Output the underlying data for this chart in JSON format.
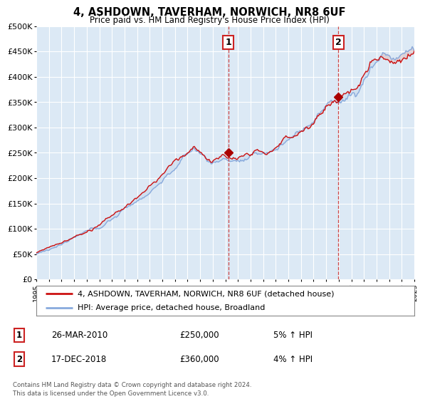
{
  "title": "4, ASHDOWN, TAVERHAM, NORWICH, NR8 6UF",
  "subtitle": "Price paid vs. HM Land Registry's House Price Index (HPI)",
  "ylim": [
    0,
    500000
  ],
  "yticks": [
    0,
    50000,
    100000,
    150000,
    200000,
    250000,
    300000,
    350000,
    400000,
    450000,
    500000
  ],
  "ytick_labels": [
    "£0",
    "£50K",
    "£100K",
    "£150K",
    "£200K",
    "£250K",
    "£300K",
    "£350K",
    "£400K",
    "£450K",
    "£500K"
  ],
  "background_color": "#ffffff",
  "plot_bg_color": "#dce9f5",
  "grid_color": "#cccccc",
  "sale1_x": 2010.23,
  "sale1_y": 250000,
  "sale2_x": 2018.97,
  "sale2_y": 360000,
  "hpi_color": "#88aadd",
  "price_color": "#cc1111",
  "marker_color": "#aa0000",
  "vline_color": "#cc4444",
  "legend_entries": [
    {
      "label": "4, ASHDOWN, TAVERHAM, NORWICH, NR8 6UF (detached house)",
      "color": "#cc1111"
    },
    {
      "label": "HPI: Average price, detached house, Broadland",
      "color": "#88aadd"
    }
  ],
  "table_rows": [
    {
      "num": "1",
      "date": "26-MAR-2010",
      "price": "£250,000",
      "hpi": "5% ↑ HPI"
    },
    {
      "num": "2",
      "date": "17-DEC-2018",
      "price": "£360,000",
      "hpi": "4% ↑ HPI"
    }
  ],
  "footer": "Contains HM Land Registry data © Crown copyright and database right 2024.\nThis data is licensed under the Open Government Licence v3.0.",
  "xmin": 1995,
  "xmax": 2025
}
